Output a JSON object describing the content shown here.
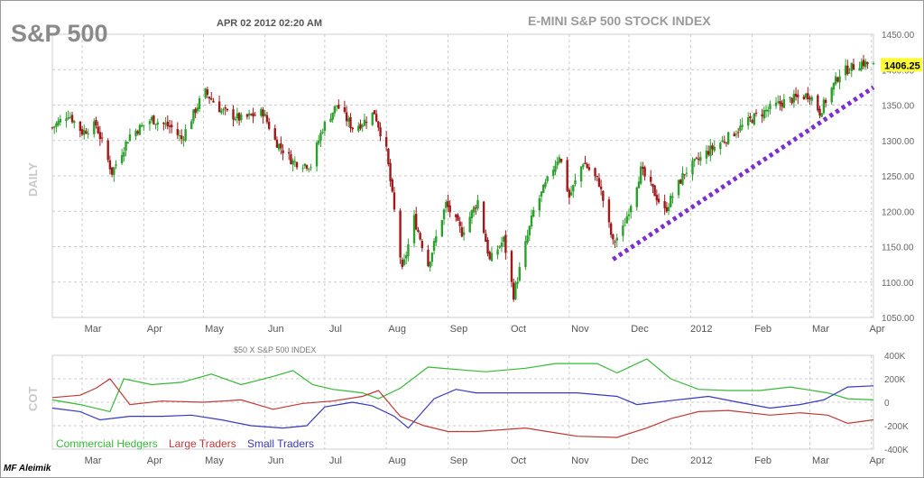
{
  "header": {
    "symbol": "S&P 500",
    "timestamp": "APR 02 2012 02:20 AM",
    "index_title": "E-MINI S&P 500 STOCK INDEX",
    "side_label_top": "DAILY",
    "side_label_bottom": "COT",
    "subpanel_title": "$50 X S&P 500 INDEX",
    "watermark": "MF Aleimik"
  },
  "colors": {
    "up": "#2ca02c",
    "down": "#a01818",
    "trendline": "#7b2fd0",
    "commercial": "#38b838",
    "large": "#c03838",
    "small": "#3838c0",
    "last_price_bg": "#ffff33",
    "grid": "#cccccc"
  },
  "chart_data": [
    {
      "type": "candlestick",
      "title": "E-MINI S&P 500 STOCK INDEX",
      "ylabel": "DAILY",
      "ylim": [
        1050,
        1450
      ],
      "y_ticks": [
        "1450.00",
        "1400.00",
        "1350.00",
        "1300.00",
        "1250.00",
        "1200.00",
        "1150.00",
        "1100.00",
        "1050.00"
      ],
      "x_ticks": [
        "Mar",
        "Apr",
        "May",
        "Jun",
        "Jul",
        "Aug",
        "Sep",
        "Oct",
        "Nov",
        "Dec",
        "2012",
        "Feb",
        "Mar",
        "Apr"
      ],
      "last_price": "1406.25",
      "path_points": [
        [
          "2011-02-14",
          1318
        ],
        [
          "2011-02-22",
          1338
        ],
        [
          "2011-03-01",
          1312
        ],
        [
          "2011-03-08",
          1322
        ],
        [
          "2011-03-16",
          1255
        ],
        [
          "2011-03-25",
          1308
        ],
        [
          "2011-04-05",
          1330
        ],
        [
          "2011-04-15",
          1318
        ],
        [
          "2011-04-20",
          1302
        ],
        [
          "2011-04-29",
          1355
        ],
        [
          "2011-05-02",
          1368
        ],
        [
          "2011-05-10",
          1342
        ],
        [
          "2011-05-20",
          1330
        ],
        [
          "2011-05-31",
          1340
        ],
        [
          "2011-06-06",
          1300
        ],
        [
          "2011-06-15",
          1270
        ],
        [
          "2011-06-24",
          1265
        ],
        [
          "2011-06-30",
          1318
        ],
        [
          "2011-07-07",
          1350
        ],
        [
          "2011-07-15",
          1318
        ],
        [
          "2011-07-20",
          1325
        ],
        [
          "2011-07-26",
          1340
        ],
        [
          "2011-08-01",
          1285
        ],
        [
          "2011-08-05",
          1200
        ],
        [
          "2011-08-09",
          1115
        ],
        [
          "2011-08-15",
          1190
        ],
        [
          "2011-08-22",
          1125
        ],
        [
          "2011-08-31",
          1210
        ],
        [
          "2011-09-08",
          1170
        ],
        [
          "2011-09-16",
          1215
        ],
        [
          "2011-09-22",
          1130
        ],
        [
          "2011-09-29",
          1160
        ],
        [
          "2011-10-04",
          1082
        ],
        [
          "2011-10-14",
          1200
        ],
        [
          "2011-10-27",
          1280
        ],
        [
          "2011-11-01",
          1220
        ],
        [
          "2011-11-08",
          1270
        ],
        [
          "2011-11-16",
          1240
        ],
        [
          "2011-11-23",
          1155
        ],
        [
          "2011-11-28",
          1175
        ],
        [
          "2011-12-07",
          1258
        ],
        [
          "2011-12-13",
          1230
        ],
        [
          "2011-12-19",
          1200
        ],
        [
          "2011-12-29",
          1255
        ],
        [
          "2012-01-10",
          1285
        ],
        [
          "2012-01-20",
          1305
        ],
        [
          "2012-02-03",
          1335
        ],
        [
          "2012-02-17",
          1355
        ],
        [
          "2012-03-01",
          1365
        ],
        [
          "2012-03-06",
          1340
        ],
        [
          "2012-03-16",
          1395
        ],
        [
          "2012-03-27",
          1410
        ],
        [
          "2012-04-02",
          1406
        ]
      ],
      "annotations": [
        {
          "type": "trendline",
          "style": "dotted",
          "from": [
            "2011-11-23",
            1132
          ],
          "to": [
            "2012-04-02",
            1375
          ]
        }
      ]
    },
    {
      "type": "line",
      "title": "$50 X S&P 500 INDEX",
      "ylabel": "COT",
      "ylim": [
        -400000,
        400000
      ],
      "y_ticks": [
        "400K",
        "200K",
        "0",
        "-200K",
        "-400K"
      ],
      "x_ticks": [
        "Mar",
        "Apr",
        "May",
        "Jun",
        "Jul",
        "Aug",
        "Sep",
        "Oct",
        "Nov",
        "Dec",
        "2012",
        "Feb",
        "Mar",
        "Apr"
      ],
      "series": [
        {
          "name": "Commercial Hedgers",
          "points": [
            [
              "2011-02-14",
              20000
            ],
            [
              "2011-02-28",
              -20000
            ],
            [
              "2011-03-15",
              -80000
            ],
            [
              "2011-03-22",
              200000
            ],
            [
              "2011-04-05",
              150000
            ],
            [
              "2011-04-20",
              170000
            ],
            [
              "2011-05-05",
              240000
            ],
            [
              "2011-05-20",
              150000
            ],
            [
              "2011-06-05",
              220000
            ],
            [
              "2011-06-15",
              270000
            ],
            [
              "2011-06-25",
              150000
            ],
            [
              "2011-07-05",
              110000
            ],
            [
              "2011-07-20",
              80000
            ],
            [
              "2011-07-28",
              30000
            ],
            [
              "2011-08-08",
              120000
            ],
            [
              "2011-08-22",
              300000
            ],
            [
              "2011-09-05",
              280000
            ],
            [
              "2011-09-20",
              260000
            ],
            [
              "2011-10-10",
              290000
            ],
            [
              "2011-10-25",
              330000
            ],
            [
              "2011-11-15",
              330000
            ],
            [
              "2011-11-25",
              250000
            ],
            [
              "2011-12-10",
              370000
            ],
            [
              "2011-12-22",
              200000
            ],
            [
              "2012-01-05",
              110000
            ],
            [
              "2012-01-20",
              100000
            ],
            [
              "2012-02-05",
              100000
            ],
            [
              "2012-02-20",
              130000
            ],
            [
              "2012-03-10",
              80000
            ],
            [
              "2012-03-20",
              30000
            ],
            [
              "2012-04-02",
              20000
            ]
          ]
        },
        {
          "name": "Large Traders",
          "points": [
            [
              "2011-02-14",
              40000
            ],
            [
              "2011-02-28",
              60000
            ],
            [
              "2011-03-08",
              120000
            ],
            [
              "2011-03-15",
              200000
            ],
            [
              "2011-03-25",
              -20000
            ],
            [
              "2011-04-10",
              10000
            ],
            [
              "2011-05-01",
              0
            ],
            [
              "2011-05-20",
              20000
            ],
            [
              "2011-06-05",
              -60000
            ],
            [
              "2011-06-20",
              -10000
            ],
            [
              "2011-07-05",
              10000
            ],
            [
              "2011-07-20",
              50000
            ],
            [
              "2011-07-28",
              100000
            ],
            [
              "2011-08-08",
              -120000
            ],
            [
              "2011-08-20",
              -200000
            ],
            [
              "2011-09-01",
              -250000
            ],
            [
              "2011-09-15",
              -250000
            ],
            [
              "2011-10-10",
              -220000
            ],
            [
              "2011-11-05",
              -290000
            ],
            [
              "2011-11-25",
              -300000
            ],
            [
              "2011-12-10",
              -220000
            ],
            [
              "2011-12-22",
              -140000
            ],
            [
              "2012-01-05",
              -80000
            ],
            [
              "2012-01-20",
              -70000
            ],
            [
              "2012-02-10",
              -110000
            ],
            [
              "2012-02-25",
              -90000
            ],
            [
              "2012-03-10",
              -110000
            ],
            [
              "2012-03-20",
              -180000
            ],
            [
              "2012-04-02",
              -150000
            ]
          ]
        },
        {
          "name": "Small Traders",
          "points": [
            [
              "2011-02-14",
              -50000
            ],
            [
              "2011-02-28",
              -80000
            ],
            [
              "2011-03-10",
              -150000
            ],
            [
              "2011-03-25",
              -120000
            ],
            [
              "2011-04-10",
              -120000
            ],
            [
              "2011-04-25",
              -110000
            ],
            [
              "2011-05-10",
              -150000
            ],
            [
              "2011-05-25",
              -200000
            ],
            [
              "2011-06-10",
              -220000
            ],
            [
              "2011-06-22",
              -200000
            ],
            [
              "2011-07-01",
              -40000
            ],
            [
              "2011-07-15",
              0
            ],
            [
              "2011-07-25",
              -30000
            ],
            [
              "2011-08-05",
              -120000
            ],
            [
              "2011-08-12",
              -220000
            ],
            [
              "2011-08-25",
              30000
            ],
            [
              "2011-09-05",
              110000
            ],
            [
              "2011-09-15",
              80000
            ],
            [
              "2011-10-05",
              80000
            ],
            [
              "2011-11-05",
              80000
            ],
            [
              "2011-11-25",
              50000
            ],
            [
              "2011-12-05",
              -20000
            ],
            [
              "2011-12-20",
              10000
            ],
            [
              "2012-01-10",
              50000
            ],
            [
              "2012-01-25",
              0
            ],
            [
              "2012-02-10",
              -50000
            ],
            [
              "2012-02-25",
              -20000
            ],
            [
              "2012-03-08",
              20000
            ],
            [
              "2012-03-20",
              130000
            ],
            [
              "2012-04-02",
              140000
            ]
          ]
        }
      ],
      "legend": [
        "Commercial Hedgers",
        "Large Traders",
        "Small Traders"
      ],
      "legend_position": "bottom-left"
    }
  ]
}
